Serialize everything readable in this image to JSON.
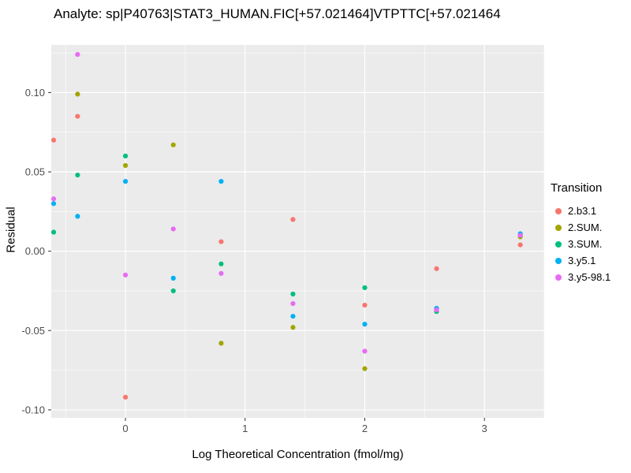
{
  "title": "Analyte: sp|P40763|STAT3_HUMAN.FIC[+57.021464]VTPTTC[+57.021464",
  "axes": {
    "xlabel": "Log Theoretical Concentration (fmol/mg)",
    "ylabel": "Residual"
  },
  "legend": {
    "title": "Transition",
    "entries": [
      {
        "label": "2.b3.1",
        "color": "#F8766D"
      },
      {
        "label": "2.SUM.",
        "color": "#A3A500"
      },
      {
        "label": "3.SUM.",
        "color": "#00BF7D"
      },
      {
        "label": "3.y5.1",
        "color": "#00B0F6"
      },
      {
        "label": "3.y5-98.1",
        "color": "#E76BF3"
      }
    ]
  },
  "chart_data": {
    "type": "scatter",
    "title": "Analyte: sp|P40763|STAT3_HUMAN.FIC[+57.021464]VTPTTC[+57.021464",
    "xlabel": "Log Theoretical Concentration (fmol/mg)",
    "ylabel": "Residual",
    "xlim": [
      -0.62,
      3.5
    ],
    "ylim": [
      -0.105,
      0.13
    ],
    "panel_background": "#EBEBEB",
    "grid_color": "#FFFFFF",
    "tick_label_color": "#4D4D4D",
    "x_ticks": [
      {
        "value": 0,
        "label": "0"
      },
      {
        "value": 1,
        "label": "1"
      },
      {
        "value": 2,
        "label": "2"
      },
      {
        "value": 3,
        "label": "3"
      }
    ],
    "y_ticks": [
      {
        "value": -0.1,
        "label": "-0.10"
      },
      {
        "value": -0.05,
        "label": "-0.05"
      },
      {
        "value": 0.0,
        "label": "0.00"
      },
      {
        "value": 0.05,
        "label": "0.05"
      },
      {
        "value": 0.1,
        "label": "0.10"
      }
    ],
    "x_minor": [
      -0.5,
      0.5,
      1.5,
      2.5,
      3.5
    ],
    "y_minor": [
      -0.075,
      -0.025,
      0.025,
      0.075,
      0.125
    ],
    "series": [
      {
        "name": "2.b3.1",
        "color": "#F8766D",
        "points": [
          [
            -0.6,
            0.07
          ],
          [
            -0.4,
            0.085
          ],
          [
            0,
            -0.092
          ],
          [
            0.8,
            0.006
          ],
          [
            1.4,
            0.02
          ],
          [
            2.0,
            -0.034
          ],
          [
            2.6,
            -0.011
          ],
          [
            3.3,
            0.004
          ]
        ]
      },
      {
        "name": "2.SUM.",
        "color": "#A3A500",
        "points": [
          [
            -0.4,
            0.099
          ],
          [
            0,
            0.054
          ],
          [
            0.4,
            0.067
          ],
          [
            0.8,
            -0.058
          ],
          [
            1.4,
            -0.048
          ],
          [
            2.0,
            -0.074
          ],
          [
            2.6,
            -0.037
          ],
          [
            3.3,
            0.009
          ]
        ]
      },
      {
        "name": "3.SUM.",
        "color": "#00BF7D",
        "points": [
          [
            -0.6,
            0.012
          ],
          [
            -0.4,
            0.048
          ],
          [
            0,
            0.06
          ],
          [
            0.4,
            -0.025
          ],
          [
            0.8,
            -0.008
          ],
          [
            1.4,
            -0.027
          ],
          [
            2.0,
            -0.023
          ],
          [
            2.6,
            -0.038
          ],
          [
            3.3,
            0.01
          ]
        ]
      },
      {
        "name": "3.y5.1",
        "color": "#00B0F6",
        "points": [
          [
            -0.6,
            0.03
          ],
          [
            -0.4,
            0.022
          ],
          [
            0,
            0.044
          ],
          [
            0.4,
            -0.017
          ],
          [
            0.8,
            0.044
          ],
          [
            1.4,
            -0.041
          ],
          [
            2.0,
            -0.046
          ],
          [
            2.6,
            -0.036
          ],
          [
            3.3,
            0.011
          ]
        ]
      },
      {
        "name": "3.y5-98.1",
        "color": "#E76BF3",
        "points": [
          [
            -0.6,
            0.033
          ],
          [
            -0.4,
            0.124
          ],
          [
            0,
            -0.015
          ],
          [
            0.4,
            0.014
          ],
          [
            0.8,
            -0.014
          ],
          [
            1.4,
            -0.033
          ],
          [
            2.0,
            -0.063
          ],
          [
            2.6,
            -0.037
          ],
          [
            3.3,
            0.01
          ]
        ]
      }
    ]
  }
}
